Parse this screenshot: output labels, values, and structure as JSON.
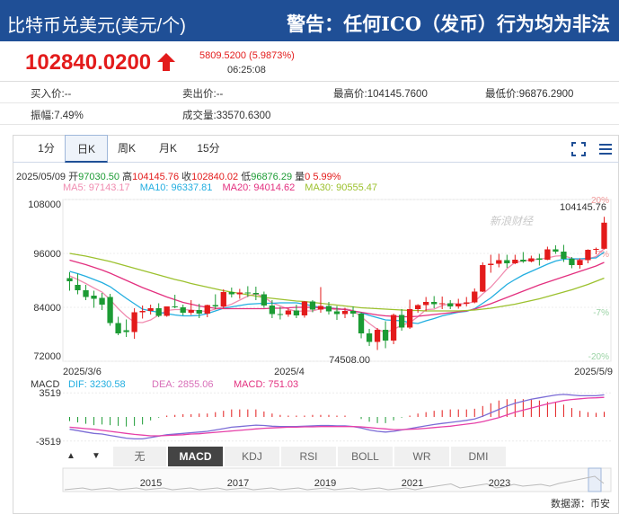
{
  "header": {
    "title": "比特币兑美元(美元/个)",
    "warning": "警告：任何ICO（发币）行为均为非法"
  },
  "quote": {
    "price": "102840.0200",
    "change": "5809.5200 (5.9873%)",
    "time": "06:25:08"
  },
  "stats": {
    "buy": "买入价:--",
    "sell": "卖出价:--",
    "high": "最高价:104145.7600",
    "low": "最低价:96876.2900",
    "amplitude": "振幅:7.49%",
    "volume": "成交量:33570.6300"
  },
  "tabs": [
    "1分",
    "日K",
    "周K",
    "月K",
    "15分"
  ],
  "active_tab": "日K",
  "info": {
    "date": "2025/05/09",
    "open_label": "开",
    "open": "97030.50",
    "high_label": "高",
    "high": "104145.76",
    "close_label": "收",
    "close": "102840.02",
    "low_label": "低",
    "low": "96876.29",
    "vol_label": "量",
    "vol": "0",
    "pct": "5.99%"
  },
  "ma": {
    "ma5": "MA5: 97143.17",
    "ma10": "MA10: 96337.81",
    "ma20": "MA20: 94014.62",
    "ma30": "MA30: 90555.47"
  },
  "macd_info": {
    "label": "MACD",
    "dif": "DIF: 3230.58",
    "dea": "DEA: 2855.06",
    "macd": "MACD: 751.03"
  },
  "indicator_tabs": [
    "无",
    "MACD",
    "KDJ",
    "RSI",
    "BOLL",
    "WR",
    "DMI"
  ],
  "active_indicator": "MACD",
  "nav_years": [
    "2015",
    "2017",
    "2019",
    "2021",
    "2023"
  ],
  "source": "数据源：币安",
  "watermark": "新浪财经",
  "colors": {
    "up": "#e31b1b",
    "down": "#1c9b34",
    "ma5": "#f08cb0",
    "ma10": "#22aee0",
    "ma20": "#e3307f",
    "ma30": "#9cc12e",
    "header": "#1f4f96"
  },
  "chart_data": {
    "type": "candlestick",
    "ylim": [
      72000,
      108000
    ],
    "yticks": [
      108000,
      96000,
      84000,
      72000
    ],
    "pct_ticks": [
      "20%",
      "7%",
      "-7%",
      "-20%"
    ],
    "xlabels": [
      "2025/3/6",
      "2025/4",
      "2025/5/9"
    ],
    "annotations": {
      "max": "104145.76",
      "min": "74508.00"
    },
    "candles": [
      [
        90500,
        91800,
        89800,
        87700
      ],
      [
        89000,
        91500,
        87800,
        86900
      ],
      [
        87800,
        89000,
        86300,
        85600
      ],
      [
        86600,
        87700,
        85900,
        83900
      ],
      [
        86100,
        87200,
        84600,
        83400
      ],
      [
        86300,
        87000,
        80500,
        79900
      ],
      [
        80500,
        81900,
        78200,
        77800
      ],
      [
        78900,
        81300,
        78500,
        77400
      ],
      [
        78500,
        83800,
        82900,
        77000
      ],
      [
        82900,
        84400,
        83200,
        81500
      ],
      [
        83200,
        84600,
        83800,
        82400
      ],
      [
        83800,
        84900,
        82100,
        81800
      ],
      [
        82100,
        84100,
        84200,
        81900
      ],
      [
        84200,
        86800,
        84000,
        83800
      ],
      [
        84000,
        84600,
        82800,
        82200
      ],
      [
        82800,
        85600,
        83400,
        82300
      ],
      [
        83400,
        84800,
        82600,
        81600
      ],
      [
        82600,
        84600,
        84500,
        81800
      ],
      [
        84500,
        86900,
        84200,
        83600
      ],
      [
        84200,
        88000,
        87400,
        83800
      ],
      [
        87400,
        88400,
        86900,
        86200
      ],
      [
        86900,
        88100,
        87300,
        85900
      ],
      [
        87300,
        88700,
        87200,
        86300
      ],
      [
        87200,
        88600,
        86900,
        85600
      ],
      [
        86900,
        87500,
        84400,
        83900
      ],
      [
        84400,
        85600,
        82500,
        81600
      ],
      [
        82500,
        84100,
        82400,
        81300
      ],
      [
        82400,
        83800,
        83300,
        81900
      ],
      [
        83300,
        84600,
        82200,
        81600
      ],
      [
        82200,
        85400,
        85300,
        81700
      ],
      [
        85300,
        85600,
        83500,
        82900
      ],
      [
        83500,
        88500,
        84300,
        82800
      ],
      [
        84300,
        85200,
        83100,
        82400
      ],
      [
        83100,
        84300,
        82500,
        81200
      ],
      [
        82500,
        83900,
        83200,
        81600
      ],
      [
        83200,
        84200,
        82600,
        81800
      ],
      [
        82600,
        82900,
        78200,
        77100
      ],
      [
        78200,
        79200,
        76300,
        75400
      ],
      [
        76300,
        79400,
        79000,
        74508
      ],
      [
        79000,
        80900,
        76600,
        74900
      ],
      [
        76600,
        82600,
        82300,
        75800
      ],
      [
        82300,
        83600,
        79500,
        78800
      ],
      [
        79500,
        85700,
        83600,
        79200
      ],
      [
        83600,
        84700,
        84500,
        82800
      ],
      [
        84500,
        86300,
        85200,
        83100
      ],
      [
        85200,
        86500,
        84700,
        83800
      ],
      [
        84700,
        86400,
        84900,
        83600
      ],
      [
        84900,
        85600,
        84200,
        83600
      ],
      [
        84200,
        85900,
        84800,
        83700
      ],
      [
        84800,
        86300,
        85100,
        84200
      ],
      [
        85100,
        88200,
        87500,
        84900
      ],
      [
        87500,
        94000,
        93400,
        87400
      ],
      [
        93400,
        95700,
        93700,
        91700
      ],
      [
        93700,
        95900,
        94500,
        92900
      ],
      [
        94500,
        95700,
        93800,
        92800
      ],
      [
        93800,
        95700,
        94600,
        93600
      ],
      [
        94600,
        96300,
        94200,
        93900
      ],
      [
        94200,
        95500,
        94900,
        94000
      ],
      [
        94900,
        95900,
        94600,
        93300
      ],
      [
        94600,
        97500,
        96900,
        94500
      ],
      [
        96900,
        97800,
        96400,
        95900
      ],
      [
        96400,
        97900,
        94800,
        94100
      ],
      [
        94800,
        95200,
        93400,
        92700
      ],
      [
        93400,
        94900,
        94500,
        92600
      ],
      [
        94500,
        96900,
        96800,
        93800
      ],
      [
        96800,
        97300,
        97000,
        95800
      ],
      [
        97030.5,
        104145.76,
        102840.02,
        96876.29
      ]
    ],
    "series": [
      {
        "name": "MA5",
        "values": [
          91000,
          90200,
          89300,
          88300,
          87400,
          85700,
          83700,
          82000,
          80700,
          80600,
          81200,
          82300,
          83300,
          83500,
          83500,
          83400,
          83200,
          83100,
          83600,
          84100,
          84700,
          85600,
          86500,
          87000,
          86300,
          85000,
          84300,
          83600,
          83100,
          83200,
          83200,
          83700,
          83800,
          83400,
          83700,
          83300,
          81900,
          80400,
          79100,
          78400,
          79100,
          80000,
          80600,
          81900,
          83500,
          83600,
          84400,
          84800,
          84800,
          84800,
          85300,
          87000,
          88500,
          90500,
          92600,
          94000,
          94300,
          94600,
          94700,
          95000,
          95400,
          95500,
          94900,
          94500,
          94800,
          95300,
          97100
        ]
      },
      {
        "name": "MA10",
        "values": [
          92000,
          91500,
          90900,
          90200,
          89500,
          88600,
          87300,
          86000,
          84800,
          83600,
          83200,
          82900,
          82600,
          82300,
          82100,
          82100,
          82200,
          82600,
          83200,
          83800,
          84100,
          84400,
          84700,
          84800,
          84900,
          84900,
          85000,
          85000,
          85000,
          84700,
          84300,
          84000,
          83900,
          83700,
          83500,
          83200,
          82800,
          82200,
          81700,
          81200,
          81100,
          81000,
          80600,
          80400,
          81000,
          81500,
          82100,
          82500,
          82900,
          83100,
          83700,
          84900,
          86100,
          87600,
          89100,
          90200,
          91200,
          92000,
          92800,
          93600,
          94300,
          94700,
          94800,
          94800,
          94900,
          95000,
          96300
        ]
      },
      {
        "name": "MA20",
        "values": [
          94500,
          94000,
          93500,
          92900,
          92300,
          91600,
          90800,
          90000,
          89200,
          88400,
          87700,
          87000,
          86300,
          85700,
          85100,
          84700,
          84300,
          84000,
          83800,
          83700,
          83700,
          83700,
          83700,
          83700,
          83700,
          83800,
          83800,
          83900,
          84000,
          84000,
          84000,
          83900,
          83800,
          83700,
          83500,
          83200,
          82900,
          82600,
          82300,
          82100,
          82000,
          81900,
          81900,
          82000,
          82200,
          82400,
          82600,
          82800,
          83000,
          83200,
          83600,
          84200,
          84800,
          85500,
          86200,
          86900,
          87600,
          88300,
          89000,
          89600,
          90200,
          90800,
          91400,
          92000,
          92600,
          93200,
          94000
        ]
      },
      {
        "name": "MA30",
        "values": [
          96000,
          95700,
          95400,
          95000,
          94600,
          94200,
          93700,
          93200,
          92700,
          92200,
          91700,
          91200,
          90700,
          90200,
          89800,
          89300,
          88900,
          88500,
          88100,
          87700,
          87400,
          87100,
          86800,
          86500,
          86200,
          86000,
          85800,
          85600,
          85400,
          85300,
          85100,
          84900,
          84700,
          84500,
          84300,
          84100,
          83900,
          83800,
          83700,
          83600,
          83500,
          83400,
          83300,
          83300,
          83200,
          83200,
          83200,
          83200,
          83200,
          83300,
          83400,
          83600,
          83800,
          84100,
          84400,
          84700,
          85100,
          85500,
          85900,
          86400,
          86900,
          87400,
          87900,
          88500,
          89100,
          89800,
          90500
        ]
      }
    ],
    "macd": {
      "ylabels": [
        "3519",
        "-3519"
      ],
      "ylim": [
        -4200,
        4200
      ],
      "dif": [
        -1800,
        -2000,
        -2200,
        -2400,
        -2500,
        -2700,
        -2900,
        -3100,
        -3200,
        -3200,
        -3000,
        -2800,
        -2600,
        -2500,
        -2400,
        -2300,
        -2200,
        -2100,
        -1900,
        -1700,
        -1500,
        -1400,
        -1300,
        -1200,
        -1250,
        -1350,
        -1400,
        -1400,
        -1400,
        -1350,
        -1300,
        -1250,
        -1250,
        -1300,
        -1300,
        -1400,
        -1600,
        -1900,
        -2100,
        -2200,
        -2100,
        -1900,
        -1700,
        -1500,
        -1300,
        -1100,
        -950,
        -800,
        -650,
        -500,
        -300,
        100,
        600,
        1100,
        1600,
        2000,
        2300,
        2600,
        2800,
        3000,
        3200,
        3300,
        3200,
        3100,
        3100,
        3100,
        3230.58
      ],
      "dea": [
        -1500,
        -1600,
        -1700,
        -1800,
        -1950,
        -2100,
        -2250,
        -2400,
        -2550,
        -2650,
        -2750,
        -2750,
        -2700,
        -2650,
        -2600,
        -2500,
        -2450,
        -2350,
        -2250,
        -2150,
        -2050,
        -1950,
        -1850,
        -1750,
        -1650,
        -1600,
        -1550,
        -1500,
        -1500,
        -1450,
        -1450,
        -1400,
        -1400,
        -1400,
        -1400,
        -1400,
        -1450,
        -1550,
        -1650,
        -1750,
        -1850,
        -1850,
        -1800,
        -1750,
        -1650,
        -1550,
        -1450,
        -1350,
        -1200,
        -1050,
        -900,
        -700,
        -400,
        -100,
        300,
        700,
        1000,
        1300,
        1600,
        1900,
        2150,
        2400,
        2550,
        2650,
        2750,
        2800,
        2855.06
      ],
      "hist": [
        -600,
        -800,
        -1000,
        -1200,
        -1100,
        -1200,
        -1300,
        -1400,
        -1300,
        -1100,
        -500,
        -100,
        200,
        300,
        400,
        400,
        500,
        500,
        700,
        900,
        1100,
        1100,
        1100,
        1100,
        800,
        500,
        300,
        200,
        200,
        200,
        300,
        300,
        300,
        200,
        200,
        0,
        -300,
        -700,
        -900,
        -900,
        -500,
        -100,
        200,
        500,
        700,
        900,
        1000,
        1100,
        1100,
        1100,
        1200,
        1600,
        2000,
        2400,
        2600,
        2600,
        2600,
        2600,
        2400,
        2200,
        2100,
        1800,
        1300,
        900,
        700,
        600,
        751.03
      ]
    }
  }
}
